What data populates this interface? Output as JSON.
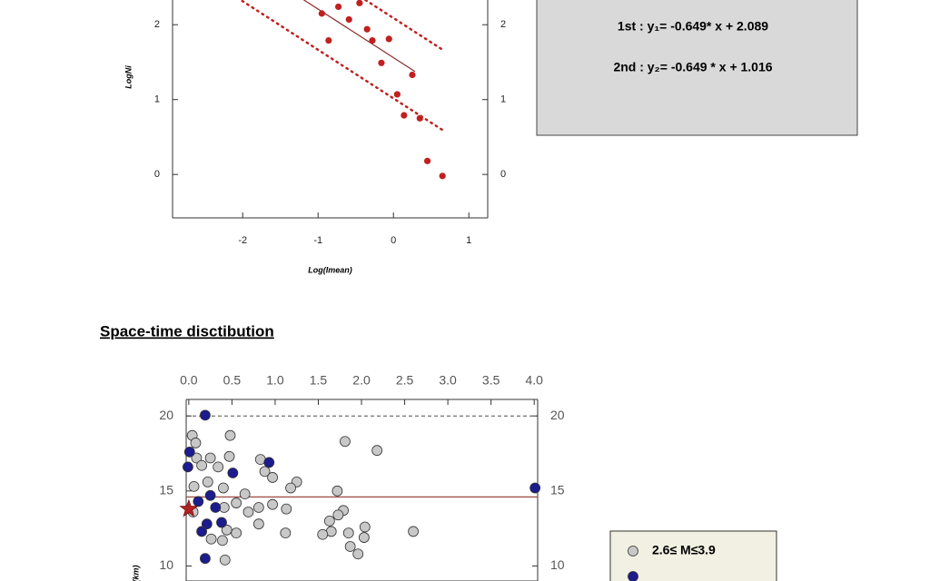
{
  "heading": "Space-time disctibution",
  "equations": [
    "1st :  y₁= -0.649* x + 2.089",
    "2nd :  y₂= -0.649 * x + 1.016"
  ],
  "chart_data": [
    {
      "type": "scatter",
      "x_label": "Log(Imean)",
      "y_label": "LogNi",
      "color": "#c0201e",
      "x": [
        -0.95,
        -0.73,
        -0.59,
        -0.45,
        -0.35,
        -0.86,
        -0.28,
        -0.06,
        -0.16,
        0.25,
        0.05,
        0.14,
        0.35,
        0.45,
        0.65
      ],
      "values": [
        2.15,
        2.24,
        2.07,
        2.29,
        1.94,
        1.79,
        1.79,
        1.81,
        1.49,
        1.33,
        1.07,
        0.79,
        0.75,
        0.18,
        -0.02
      ],
      "lines": [
        {
          "slope": -0.649,
          "intercept": 2.089,
          "x": [
            -0.7,
            0.65
          ],
          "style": "dotted"
        },
        {
          "slope": -0.649,
          "intercept": 1.016,
          "x": [
            -2.4,
            0.65
          ],
          "style": "dotted"
        },
        {
          "slope": -0.649,
          "intercept": 1.56,
          "x": [
            -1.25,
            0.28
          ],
          "style": "solid"
        }
      ],
      "xlim": [
        -2.93,
        1.25
      ],
      "xticks": [
        -2,
        -1,
        0,
        1
      ],
      "ylim": [
        -0.58,
        2.5
      ],
      "yticks": [
        0,
        1,
        2
      ]
    },
    {
      "type": "scatter",
      "y_label": "(km)",
      "series": [
        {
          "name": "2.6≤ M≤3.9",
          "color": "#c8c8c8",
          "x": [
            0.48,
            0.04,
            0.08,
            1.81,
            2.18,
            0.09,
            0.25,
            0.47,
            0.83,
            0.15,
            0.34,
            0.88,
            0.97,
            1.25,
            1.18,
            1.72,
            0.65,
            0.4,
            0.06,
            0.22,
            0.55,
            0.81,
            0.97,
            1.13,
            0.69,
            1.63,
            1.79,
            1.73,
            2.04,
            1.85,
            1.65,
            1.55,
            1.12,
            2.6,
            2.03,
            1.87,
            1.96,
            0.44,
            0.55,
            0.26,
            0.39,
            0.81,
            0.42,
            0.05,
            0.41
          ],
          "values": [
            18.7,
            18.7,
            18.2,
            18.3,
            17.7,
            17.2,
            17.2,
            17.3,
            17.1,
            16.7,
            16.6,
            16.3,
            15.9,
            15.6,
            15.2,
            15.0,
            14.8,
            15.2,
            15.3,
            15.6,
            14.2,
            13.9,
            14.1,
            13.8,
            13.6,
            13.0,
            13.7,
            13.4,
            12.6,
            12.2,
            12.3,
            12.1,
            12.2,
            12.3,
            11.9,
            11.3,
            10.8,
            12.4,
            12.2,
            11.8,
            11.7,
            12.8,
            10.4,
            13.6,
            13.9
          ]
        },
        {
          "color": "#1c1c8e",
          "x": [
            0.19,
            0.01,
            0.93,
            -0.01,
            0.51,
            0.25,
            0.31,
            0.11,
            4.01,
            0.21,
            0.15,
            0.38,
            0.19
          ],
          "values": [
            20.05,
            17.6,
            16.9,
            16.6,
            16.2,
            14.7,
            13.9,
            14.3,
            15.2,
            12.8,
            12.3,
            12.9,
            10.5
          ]
        }
      ],
      "star": {
        "x": 0,
        "y": 13.8,
        "color": "#b22222"
      },
      "reference_lines": [
        {
          "value": 20,
          "style": "dashed"
        },
        {
          "value": 14.6,
          "style": "solid"
        }
      ],
      "xlim": [
        -0.03,
        4.04
      ],
      "xticks": [
        {
          "value": 0,
          "label": "0.0"
        },
        0.5,
        {
          "value": 1,
          "label": "1.0"
        },
        1.5,
        {
          "value": 2,
          "label": "2.0"
        },
        2.5,
        {
          "value": 3,
          "label": "3.0"
        },
        3.5,
        {
          "value": 4,
          "label": "4.0"
        }
      ],
      "ylim": [
        9,
        21.1
      ],
      "yticks": [
        10,
        15,
        20
      ]
    }
  ]
}
